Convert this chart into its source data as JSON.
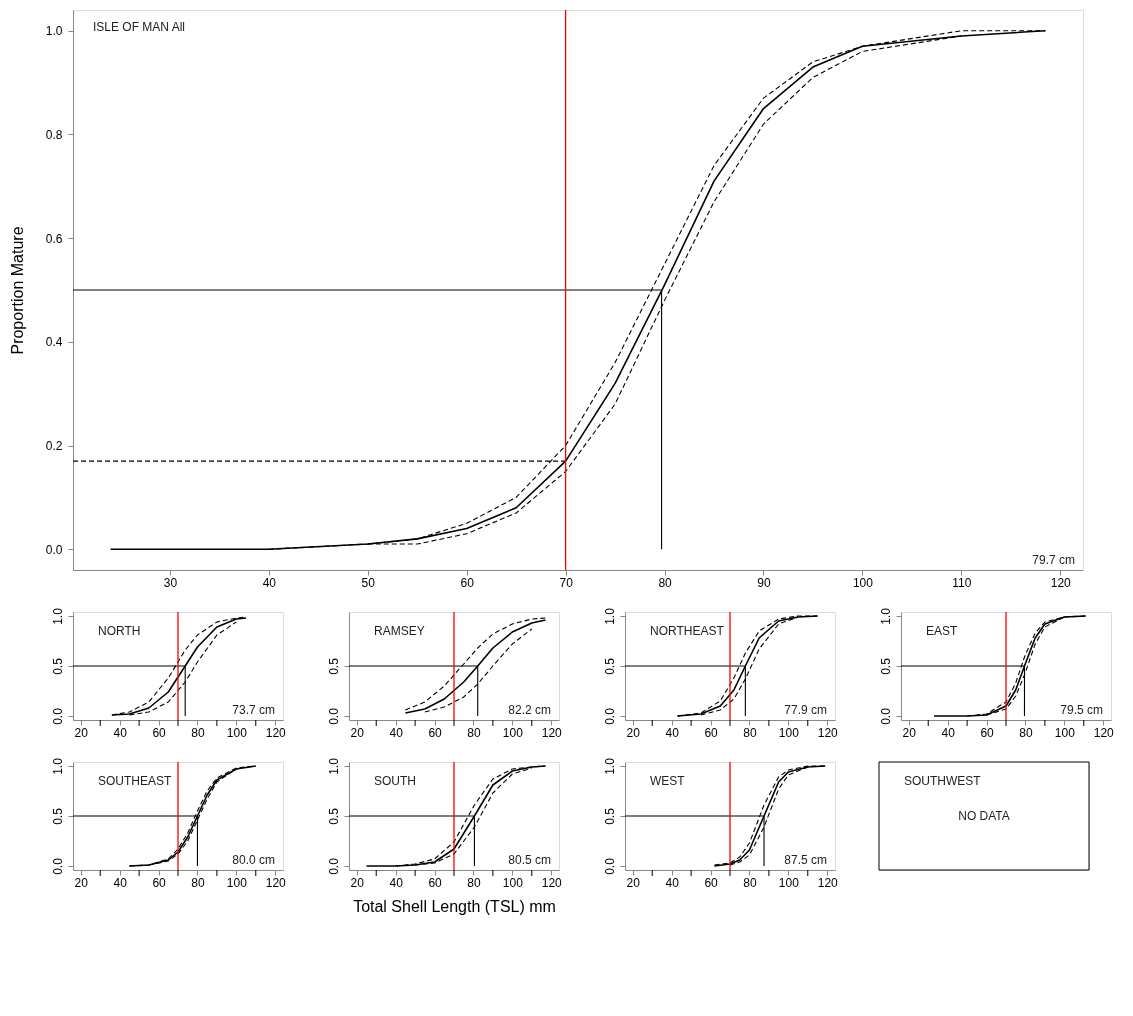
{
  "chart_data": [
    {
      "type": "line",
      "title": "ISLE OF MAN All",
      "ylabel": "Proportion Mature",
      "annotations": [
        "79.7 cm"
      ],
      "xlim": [
        20.2,
        122.3
      ],
      "ylim": [
        -0.04,
        1.04
      ],
      "xticks": [
        30,
        40,
        50,
        60,
        70,
        80,
        90,
        100,
        110,
        120
      ],
      "yticks": [
        {
          "value": 0,
          "label": "0.0"
        },
        {
          "value": 0.2,
          "label": "0.2"
        },
        {
          "value": 0.4,
          "label": "0.4"
        },
        {
          "value": 0.6,
          "label": "0.6"
        },
        {
          "value": 0.8,
          "label": "0.8"
        },
        {
          "value": 1.0,
          "label": "1.0"
        }
      ],
      "grid": false,
      "ref_lines": [
        {
          "axis": "x",
          "value": 70,
          "color": "#ff0000"
        }
      ],
      "series": [
        {
          "color": "#000000",
          "line_style": "solid",
          "x": [
            24,
            40,
            50,
            55,
            60,
            65,
            70,
            75,
            80,
            85,
            90,
            95,
            100,
            110,
            118.5
          ],
          "values": [
            0,
            0,
            0.01,
            0.02,
            0.04,
            0.08,
            0.17,
            0.32,
            0.51,
            0.71,
            0.85,
            0.93,
            0.97,
            0.99,
            1.0
          ]
        },
        {
          "color": "#000000",
          "line_style": "dashed",
          "x": [
            40,
            50,
            55,
            60,
            65,
            70,
            75,
            80,
            85,
            90,
            95,
            100,
            110,
            118.5
          ],
          "values": [
            0,
            0.01,
            0.02,
            0.05,
            0.1,
            0.2,
            0.36,
            0.55,
            0.74,
            0.87,
            0.94,
            0.97,
            1.0,
            1.0
          ]
        },
        {
          "color": "#000000",
          "line_style": "dashed",
          "x": [
            50,
            55,
            60,
            65,
            70,
            75,
            80,
            85,
            90,
            95,
            100,
            110
          ],
          "values": [
            0.01,
            0.01,
            0.03,
            0.07,
            0.15,
            0.28,
            0.48,
            0.67,
            0.82,
            0.91,
            0.96,
            0.99
          ]
        },
        {
          "color": "#000000",
          "line_style": "solid",
          "x": [
            20.2,
            79.7,
            79.7
          ],
          "values": [
            0.5,
            0.5,
            0
          ]
        },
        {
          "color": "#000000",
          "line_style": "dashed",
          "x": [
            20.2,
            70
          ],
          "values": [
            0.17,
            0.17
          ]
        }
      ]
    },
    {
      "type": "line",
      "title": "NORTH",
      "annotations": [
        "73.7 cm"
      ],
      "xlim": [
        16,
        124
      ],
      "ylim": [
        -0.04,
        1.04
      ],
      "xticks": [
        20,
        {
          "value": 30,
          "label": null
        },
        40,
        {
          "value": 50,
          "label": null
        },
        60,
        {
          "value": 70,
          "label": null
        },
        80,
        {
          "value": 90,
          "label": null
        },
        100,
        {
          "value": 110,
          "label": null
        },
        120
      ],
      "yticks": [
        {
          "value": 0,
          "label": "0.0"
        },
        {
          "value": 0.5,
          "label": "0.5"
        },
        {
          "value": 1.0,
          "label": "1.0"
        }
      ],
      "grid": false,
      "ref_lines": [
        {
          "axis": "x",
          "value": 70,
          "color": "#ff0000"
        }
      ],
      "series": [
        {
          "color": "#000000",
          "line_style": "solid",
          "x": [
            36,
            45,
            55,
            65,
            73.7,
            80,
            90,
            100,
            105
          ],
          "values": [
            0.01,
            0.02,
            0.08,
            0.24,
            0.5,
            0.69,
            0.89,
            0.97,
            0.98
          ]
        },
        {
          "color": "#000000",
          "line_style": "dashed",
          "x": [
            36,
            45,
            55,
            65,
            73.7,
            80,
            90,
            100,
            105
          ],
          "values": [
            0.01,
            0.04,
            0.14,
            0.38,
            0.66,
            0.81,
            0.94,
            0.98,
            0.99
          ]
        },
        {
          "color": "#000000",
          "line_style": "dashed",
          "x": [
            45,
            55,
            65,
            73.7,
            80,
            90,
            100
          ],
          "values": [
            0.01,
            0.04,
            0.14,
            0.34,
            0.54,
            0.81,
            0.94
          ]
        },
        {
          "color": "#000000",
          "line_style": "solid",
          "x": [
            16,
            73.7,
            73.7
          ],
          "values": [
            0.5,
            0.5,
            0
          ]
        }
      ]
    },
    {
      "type": "line",
      "title": "RAMSEY",
      "annotations": [
        "82.2 cm"
      ],
      "xlim": [
        16,
        124
      ],
      "ylim": [
        -0.04,
        1.04
      ],
      "xticks": [
        20,
        {
          "value": 30,
          "label": null
        },
        40,
        {
          "value": 50,
          "label": null
        },
        60,
        {
          "value": 70,
          "label": null
        },
        80,
        {
          "value": 90,
          "label": null
        },
        100,
        {
          "value": 110,
          "label": null
        },
        120
      ],
      "yticks": [
        {
          "value": 0,
          "label": "0.0"
        },
        {
          "value": 0.5,
          "label": "0.5"
        }
      ],
      "grid": false,
      "ref_lines": [
        {
          "axis": "x",
          "value": 70,
          "color": "#ff0000"
        }
      ],
      "series": [
        {
          "color": "#000000",
          "line_style": "solid",
          "x": [
            45,
            55,
            65,
            75,
            82.2,
            90,
            100,
            110,
            117
          ],
          "values": [
            0.03,
            0.07,
            0.17,
            0.34,
            0.5,
            0.68,
            0.84,
            0.93,
            0.96
          ]
        },
        {
          "color": "#000000",
          "line_style": "dashed",
          "x": [
            45,
            55,
            65,
            75,
            82.2,
            90,
            100,
            110,
            117
          ],
          "values": [
            0.06,
            0.14,
            0.3,
            0.52,
            0.68,
            0.82,
            0.92,
            0.97,
            0.98
          ]
        },
        {
          "color": "#000000",
          "line_style": "dashed",
          "x": [
            55,
            65,
            75,
            82.2,
            90,
            100,
            110
          ],
          "values": [
            0.04,
            0.09,
            0.19,
            0.32,
            0.5,
            0.72,
            0.87
          ]
        },
        {
          "color": "#000000",
          "line_style": "solid",
          "x": [
            16,
            82.2,
            82.2
          ],
          "values": [
            0.5,
            0.5,
            0
          ]
        }
      ]
    },
    {
      "type": "line",
      "title": "NORTHEAST",
      "annotations": [
        "77.9 cm"
      ],
      "xlim": [
        16,
        124
      ],
      "ylim": [
        -0.04,
        1.04
      ],
      "xticks": [
        20,
        {
          "value": 30,
          "label": null
        },
        40,
        {
          "value": 50,
          "label": null
        },
        60,
        {
          "value": 70,
          "label": null
        },
        80,
        {
          "value": 90,
          "label": null
        },
        100,
        {
          "value": 110,
          "label": null
        },
        120
      ],
      "yticks": [
        {
          "value": 0,
          "label": "0.0"
        },
        {
          "value": 0.5,
          "label": "0.5"
        },
        {
          "value": 1.0,
          "label": "1.0"
        }
      ],
      "grid": false,
      "ref_lines": [
        {
          "axis": "x",
          "value": 70,
          "color": "#ff0000"
        }
      ],
      "series": [
        {
          "color": "#000000",
          "line_style": "solid",
          "x": [
            43,
            55,
            65,
            72,
            77.9,
            85,
            95,
            105,
            115
          ],
          "values": [
            0,
            0.02,
            0.1,
            0.26,
            0.5,
            0.78,
            0.95,
            0.99,
            1.0
          ]
        },
        {
          "color": "#000000",
          "line_style": "dashed",
          "x": [
            43,
            55,
            65,
            72,
            77.9,
            85,
            95,
            105,
            115
          ],
          "values": [
            0,
            0.03,
            0.15,
            0.38,
            0.63,
            0.85,
            0.97,
            1.0,
            1.0
          ]
        },
        {
          "color": "#000000",
          "line_style": "dashed",
          "x": [
            55,
            65,
            72,
            77.9,
            85,
            95,
            105
          ],
          "values": [
            0.01,
            0.06,
            0.17,
            0.37,
            0.67,
            0.92,
            0.99
          ]
        },
        {
          "color": "#000000",
          "line_style": "solid",
          "x": [
            16,
            77.9,
            77.9
          ],
          "values": [
            0.5,
            0.5,
            0
          ]
        }
      ]
    },
    {
      "type": "line",
      "title": "EAST",
      "annotations": [
        "79.5 cm"
      ],
      "xlim": [
        16,
        124
      ],
      "ylim": [
        -0.04,
        1.04
      ],
      "xticks": [
        20,
        {
          "value": 30,
          "label": null
        },
        40,
        {
          "value": 50,
          "label": null
        },
        60,
        {
          "value": 70,
          "label": null
        },
        80,
        {
          "value": 90,
          "label": null
        },
        100,
        {
          "value": 110,
          "label": null
        },
        120
      ],
      "yticks": [
        {
          "value": 0,
          "label": "0.0"
        },
        {
          "value": 0.5,
          "label": "0.5"
        },
        {
          "value": 1.0,
          "label": "1.0"
        }
      ],
      "grid": false,
      "ref_lines": [
        {
          "axis": "x",
          "value": 70,
          "color": "#ff0000"
        }
      ],
      "series": [
        {
          "color": "#000000",
          "line_style": "solid",
          "x": [
            33,
            50,
            60,
            70,
            75,
            79.5,
            85,
            90,
            100,
            111
          ],
          "values": [
            0,
            0,
            0.01,
            0.1,
            0.26,
            0.5,
            0.78,
            0.92,
            0.99,
            1.0
          ]
        },
        {
          "color": "#000000",
          "line_style": "dashed",
          "x": [
            50,
            60,
            70,
            75,
            79.5,
            85,
            90,
            100,
            111
          ],
          "values": [
            0,
            0.02,
            0.14,
            0.33,
            0.59,
            0.83,
            0.94,
            0.99,
            1.0
          ]
        },
        {
          "color": "#000000",
          "line_style": "dashed",
          "x": [
            60,
            70,
            75,
            79.5,
            85,
            90,
            100
          ],
          "values": [
            0.01,
            0.07,
            0.2,
            0.41,
            0.72,
            0.89,
            0.99
          ]
        },
        {
          "color": "#000000",
          "line_style": "solid",
          "x": [
            16,
            79.5,
            79.5
          ],
          "values": [
            0.5,
            0.5,
            0
          ]
        }
      ]
    },
    {
      "type": "line",
      "title": "SOUTHEAST",
      "annotations": [
        "80.0 cm"
      ],
      "xlim": [
        16,
        124
      ],
      "ylim": [
        -0.04,
        1.04
      ],
      "xticks": [
        20,
        {
          "value": 30,
          "label": null
        },
        40,
        {
          "value": 50,
          "label": null
        },
        60,
        {
          "value": 70,
          "label": null
        },
        80,
        {
          "value": 90,
          "label": null
        },
        100,
        {
          "value": 110,
          "label": null
        },
        120
      ],
      "yticks": [
        {
          "value": 0,
          "label": "0.0"
        },
        {
          "value": 0.5,
          "label": "0.5"
        },
        {
          "value": 1.0,
          "label": "1.0"
        }
      ],
      "grid": false,
      "ref_lines": [
        {
          "axis": "x",
          "value": 70,
          "color": "#ff0000"
        }
      ],
      "series": [
        {
          "color": "#000000",
          "line_style": "solid",
          "x": [
            45,
            55,
            65,
            70,
            75,
            80,
            85,
            90,
            100,
            110
          ],
          "values": [
            0,
            0.01,
            0.06,
            0.14,
            0.29,
            0.5,
            0.71,
            0.86,
            0.97,
            1.0
          ]
        },
        {
          "color": "#000000",
          "line_style": "dashed",
          "x": [
            45,
            55,
            65,
            70,
            75,
            80,
            85,
            90,
            100,
            110
          ],
          "values": [
            0,
            0.01,
            0.07,
            0.17,
            0.33,
            0.55,
            0.75,
            0.88,
            0.98,
            1.0
          ]
        },
        {
          "color": "#000000",
          "line_style": "dashed",
          "x": [
            55,
            65,
            70,
            75,
            80,
            85,
            90,
            100
          ],
          "values": [
            0.01,
            0.05,
            0.12,
            0.25,
            0.46,
            0.67,
            0.84,
            0.97
          ]
        },
        {
          "color": "#000000",
          "line_style": "solid",
          "x": [
            16,
            80.0,
            80.0
          ],
          "values": [
            0.5,
            0.5,
            0
          ]
        }
      ]
    },
    {
      "type": "line",
      "title": "SOUTH",
      "xlabel": "Total Shell Length (TSL) mm",
      "annotations": [
        "80.5 cm"
      ],
      "xlim": [
        16,
        124
      ],
      "ylim": [
        -0.04,
        1.04
      ],
      "xticks": [
        20,
        {
          "value": 30,
          "label": null
        },
        40,
        {
          "value": 50,
          "label": null
        },
        60,
        {
          "value": 70,
          "label": null
        },
        80,
        {
          "value": 90,
          "label": null
        },
        100,
        {
          "value": 110,
          "label": null
        },
        120
      ],
      "yticks": [
        {
          "value": 0,
          "label": "0.0"
        },
        {
          "value": 0.5,
          "label": "0.5"
        },
        {
          "value": 1.0,
          "label": "1.0"
        }
      ],
      "grid": false,
      "ref_lines": [
        {
          "axis": "x",
          "value": 70,
          "color": "#ff0000"
        }
      ],
      "series": [
        {
          "color": "#000000",
          "line_style": "solid",
          "x": [
            25,
            40,
            50,
            60,
            70,
            80.5,
            90,
            100,
            110,
            117
          ],
          "values": [
            0,
            0,
            0.01,
            0.04,
            0.17,
            0.5,
            0.81,
            0.95,
            0.99,
            1.0
          ]
        },
        {
          "color": "#000000",
          "line_style": "dashed",
          "x": [
            40,
            50,
            60,
            70,
            80.5,
            90,
            100,
            110,
            117
          ],
          "values": [
            0,
            0.02,
            0.07,
            0.24,
            0.61,
            0.87,
            0.97,
            0.99,
            1.0
          ]
        },
        {
          "color": "#000000",
          "line_style": "dashed",
          "x": [
            50,
            60,
            70,
            80.5,
            90,
            100,
            110
          ],
          "values": [
            0.01,
            0.03,
            0.12,
            0.39,
            0.73,
            0.92,
            0.98
          ]
        },
        {
          "color": "#000000",
          "line_style": "solid",
          "x": [
            16,
            80.5,
            80.5
          ],
          "values": [
            0.5,
            0.5,
            0
          ]
        }
      ]
    },
    {
      "type": "line",
      "title": "WEST",
      "annotations": [
        "87.5 cm"
      ],
      "xlim": [
        16,
        124
      ],
      "ylim": [
        -0.04,
        1.04
      ],
      "xticks": [
        20,
        {
          "value": 30,
          "label": null
        },
        40,
        {
          "value": 50,
          "label": null
        },
        60,
        {
          "value": 70,
          "label": null
        },
        80,
        {
          "value": 90,
          "label": null
        },
        100,
        {
          "value": 110,
          "label": null
        },
        120
      ],
      "yticks": [
        {
          "value": 0,
          "label": "0.0"
        },
        {
          "value": 0.5,
          "label": "0.5"
        },
        {
          "value": 1.0,
          "label": "1.0"
        }
      ],
      "grid": false,
      "ref_lines": [
        {
          "axis": "x",
          "value": 70,
          "color": "#ff0000"
        }
      ],
      "series": [
        {
          "color": "#000000",
          "line_style": "solid",
          "x": [
            62,
            70,
            75,
            80,
            87.5,
            95,
            100,
            110,
            119
          ],
          "values": [
            0,
            0.02,
            0.06,
            0.16,
            0.5,
            0.84,
            0.94,
            0.99,
            1.0
          ]
        },
        {
          "color": "#000000",
          "line_style": "dashed",
          "x": [
            62,
            70,
            75,
            80,
            87.5,
            95,
            100,
            110,
            119
          ],
          "values": [
            0.01,
            0.03,
            0.09,
            0.23,
            0.61,
            0.89,
            0.96,
            1.0,
            1.0
          ]
        },
        {
          "color": "#000000",
          "line_style": "dashed",
          "x": [
            70,
            75,
            80,
            87.5,
            95,
            100,
            110
          ],
          "values": [
            0.01,
            0.04,
            0.11,
            0.39,
            0.77,
            0.91,
            0.99
          ]
        },
        {
          "color": "#000000",
          "line_style": "solid",
          "x": [
            16,
            87.5,
            87.5
          ],
          "values": [
            0.5,
            0.5,
            0
          ]
        }
      ]
    },
    {
      "type": "other",
      "title": "SOUTHWEST",
      "annotations": [
        "NO DATA"
      ]
    }
  ]
}
